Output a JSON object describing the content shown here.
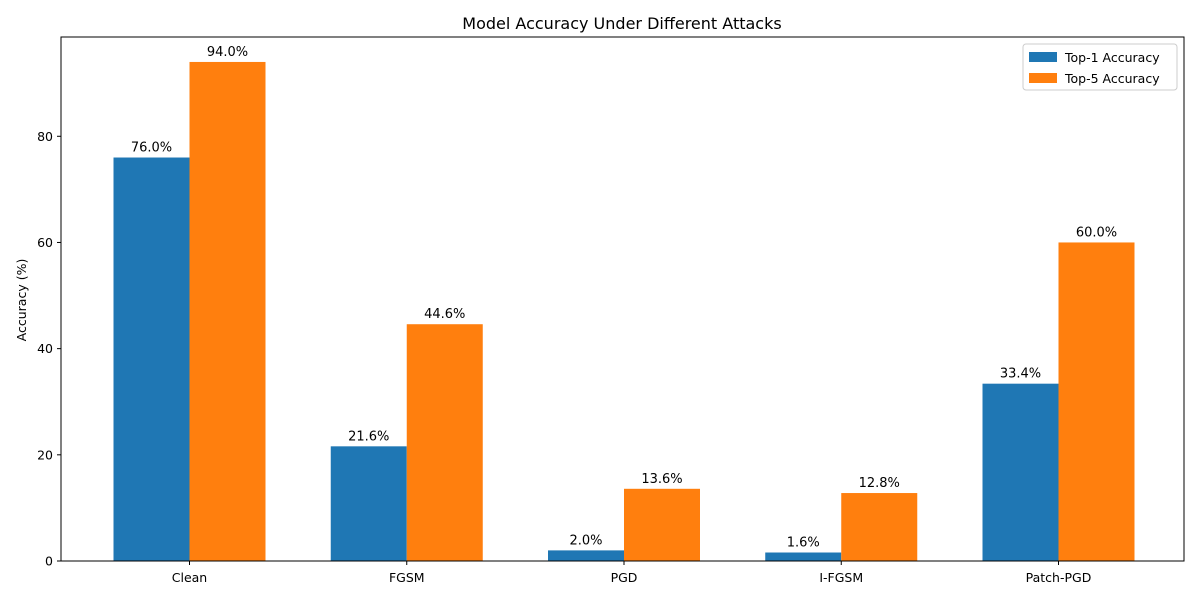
{
  "chart_data": {
    "type": "bar",
    "title": "Model Accuracy Under Different Attacks",
    "xlabel": "",
    "ylabel": "Accuracy (%)",
    "categories": [
      "Clean",
      "FGSM",
      "PGD",
      "I-FGSM",
      "Patch-PGD"
    ],
    "series": [
      {
        "name": "Top-1 Accuracy",
        "color": "#1f77b4",
        "values": [
          76.0,
          21.6,
          2.0,
          1.6,
          33.4
        ],
        "labels": [
          "76.0%",
          "21.6%",
          "2.0%",
          "1.6%",
          "33.4%"
        ]
      },
      {
        "name": "Top-5 Accuracy",
        "color": "#ff7f0e",
        "values": [
          94.0,
          44.6,
          13.6,
          12.8,
          60.0
        ],
        "labels": [
          "94.0%",
          "44.6%",
          "13.6%",
          "12.8%",
          "60.0%"
        ]
      }
    ],
    "ylim": [
      0,
      98.7
    ],
    "yticks": [
      0,
      20,
      40,
      60,
      80
    ],
    "ytick_labels": [
      "0",
      "20",
      "40",
      "60",
      "80"
    ],
    "grid": false,
    "legend_position": "top-right"
  }
}
